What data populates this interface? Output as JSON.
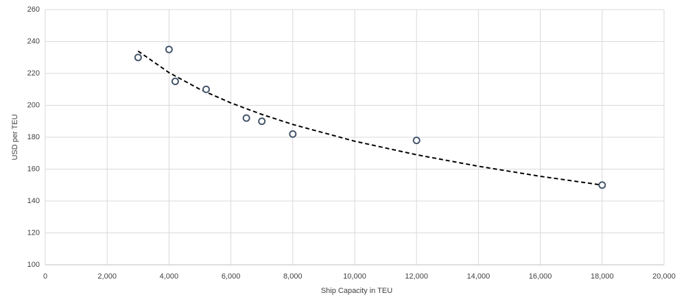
{
  "chart_data": {
    "type": "scatter",
    "x_label": "Ship Capacity in TEU",
    "y_label": "USD per TEU",
    "x": [
      3000,
      4000,
      4200,
      5200,
      6500,
      7000,
      8000,
      12000,
      18000
    ],
    "values": [
      230,
      235,
      215,
      210,
      192,
      190,
      182,
      178,
      150
    ],
    "color": "#44546a",
    "trendline": {
      "x": [
        3000,
        4000,
        5000,
        6000,
        7000,
        8000,
        10000,
        12000,
        14000,
        16000,
        18000
      ],
      "values": [
        234,
        220.5,
        210,
        201.5,
        194.3,
        188,
        177.5,
        169,
        161.8,
        155.5,
        150
      ],
      "color": "#000000"
    },
    "xlim": [
      0,
      20000
    ],
    "xticks": [
      0,
      {
        "value": 2000,
        "label": "2,000"
      },
      {
        "value": 4000,
        "label": "4,000"
      },
      {
        "value": 6000,
        "label": "6,000"
      },
      {
        "value": 8000,
        "label": "8,000"
      },
      {
        "value": 10000,
        "label": "10,000"
      },
      {
        "value": 12000,
        "label": "12,000"
      },
      {
        "value": 14000,
        "label": "14,000"
      },
      {
        "value": 16000,
        "label": "16,000"
      },
      {
        "value": 18000,
        "label": "18,000"
      },
      {
        "value": 20000,
        "label": "20,000"
      }
    ],
    "ylim": [
      100,
      260
    ],
    "yticks": [
      100,
      120,
      140,
      160,
      180,
      200,
      220,
      240,
      260
    ],
    "grid": true
  }
}
